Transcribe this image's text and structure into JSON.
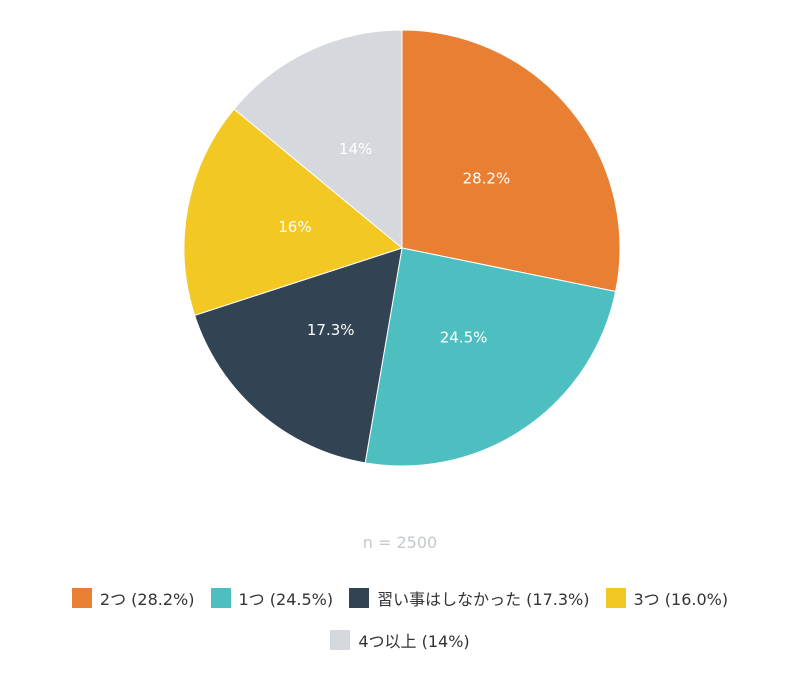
{
  "chart_data": {
    "type": "pie",
    "categories": [
      "2つ (28.2%)",
      "1つ (24.5%)",
      "習い事はしなかった (17.3%)",
      "3つ (16.0%)",
      "4つ以上 (14%)"
    ],
    "values": [
      28.2,
      24.5,
      17.3,
      16.0,
      14
    ],
    "value_labels": [
      "28.2%",
      "24.5%",
      "17.3%",
      "16%",
      "14%"
    ],
    "colors": [
      "#e97f32",
      "#4dbfc1",
      "#324454",
      "#f3c822",
      "#d5d8dd"
    ],
    "annotation": "n = 2500",
    "legend": "bottom"
  }
}
